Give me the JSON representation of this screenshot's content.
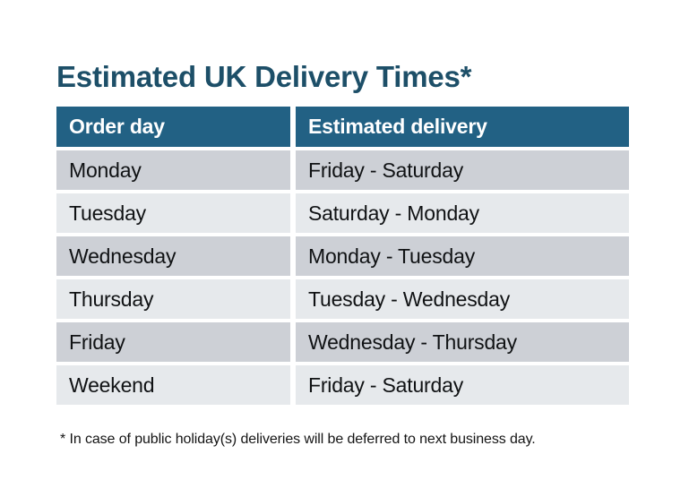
{
  "page": {
    "title": "Estimated UK Delivery Times*",
    "footnote": "* In case of public holiday(s) deliveries will be deferred to next business day."
  },
  "table": {
    "columns": [
      "Order day",
      "Estimated delivery"
    ],
    "rows": [
      {
        "day": "Monday",
        "delivery": "Friday - Saturday"
      },
      {
        "day": "Tuesday",
        "delivery": "Saturday - Monday"
      },
      {
        "day": "Wednesday",
        "delivery": "Monday - Tuesday"
      },
      {
        "day": "Thursday",
        "delivery": "Tuesday - Wednesday"
      },
      {
        "day": "Friday",
        "delivery": "Wednesday - Thursday"
      },
      {
        "day": "Weekend",
        "delivery": "Friday - Saturday"
      }
    ]
  },
  "colors": {
    "background": "#ffffff",
    "title": "#1d4f68",
    "header_bg": "#226184",
    "header_text": "#ffffff",
    "row_dark": "#cdd0d6",
    "row_light": "#e6e9ec",
    "body_text": "#101214",
    "footnote_text": "#141414"
  }
}
